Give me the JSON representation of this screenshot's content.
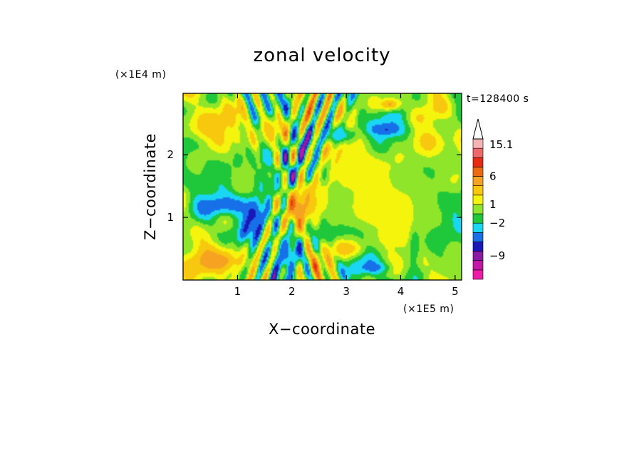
{
  "chart_data": {
    "type": "heatmap",
    "title": "zonal velocity",
    "xlabel": "X−coordinate",
    "ylabel": "Z−coordinate",
    "x_unit": "(×1E5 m)",
    "y_unit": "(×1E4 m)",
    "time_label": "t=128400 s",
    "xlim": [
      0,
      5.12
    ],
    "ylim": [
      0,
      2.98
    ],
    "x_ticks": [
      {
        "value": 1,
        "label": "1"
      },
      {
        "value": 2,
        "label": "2"
      },
      {
        "value": 3,
        "label": "3"
      },
      {
        "value": 4,
        "label": "4"
      },
      {
        "value": 5,
        "label": "5"
      }
    ],
    "y_ticks": [
      {
        "value": 1,
        "label": "1"
      },
      {
        "value": 2,
        "label": "2"
      }
    ],
    "colorbar": {
      "colors": [
        "#ee1aa8",
        "#c318a6",
        "#8b1ba3",
        "#1a18b8",
        "#1870e8",
        "#19d6f3",
        "#1ec83a",
        "#8ee52a",
        "#f4f40d",
        "#f8c80f",
        "#f5a320",
        "#ee6a12",
        "#e82a12",
        "#f0686a",
        "#f7b4b4"
      ],
      "labels": [
        {
          "level_index": 2.5,
          "label": "−9"
        },
        {
          "level_index": 6,
          "label": "−2"
        },
        {
          "level_index": 8,
          "label": "1"
        },
        {
          "level_index": 11,
          "label": "6"
        },
        {
          "level_index": 14.4,
          "label": "15.1"
        }
      ],
      "extend_max": true
    },
    "field_features": [
      {
        "x": 2.15,
        "z": 1.15,
        "level": 13,
        "rx": 0.22,
        "rz": 0.3
      },
      {
        "x": 2.4,
        "z": 1.25,
        "level": 11,
        "rx": 0.3,
        "rz": 0.3
      },
      {
        "x": 0.8,
        "z": 1.2,
        "level": 4,
        "rx": 0.55,
        "rz": 0.15
      },
      {
        "x": 1.3,
        "z": 1.05,
        "level": 3,
        "rx": 0.25,
        "rz": 0.28
      },
      {
        "x": 3.75,
        "z": 2.4,
        "level": 3,
        "rx": 0.35,
        "rz": 0.12
      },
      {
        "x": 2.9,
        "z": 2.3,
        "level": 4,
        "rx": 0.35,
        "rz": 0.15
      },
      {
        "x": 1.5,
        "z": 2.0,
        "level": 4,
        "rx": 0.15,
        "rz": 0.35
      },
      {
        "x": 1.9,
        "z": 0.45,
        "level": 4,
        "rx": 0.25,
        "rz": 0.4
      },
      {
        "x": 3.5,
        "z": 0.2,
        "level": 4,
        "rx": 0.3,
        "rz": 0.1
      },
      {
        "x": 4.25,
        "z": 0.7,
        "level": 4,
        "rx": 0.12,
        "rz": 0.4
      },
      {
        "x": 0.7,
        "z": 0.3,
        "level": 11,
        "rx": 0.55,
        "rz": 0.25
      },
      {
        "x": 3.3,
        "z": 1.2,
        "level": 8,
        "rx": 1.1,
        "rz": 0.6
      },
      {
        "x": 4.2,
        "z": 1.5,
        "level": 8,
        "rx": 0.5,
        "rz": 0.7
      },
      {
        "x": 0.45,
        "z": 2.45,
        "level": 10,
        "rx": 0.5,
        "rz": 0.3
      },
      {
        "x": 1.6,
        "z": 2.4,
        "level": 10,
        "rx": 0.3,
        "rz": 0.3
      },
      {
        "x": 3.1,
        "z": 1.85,
        "level": 9,
        "rx": 0.5,
        "rz": 0.35
      },
      {
        "x": 3.9,
        "z": 1.0,
        "level": 9,
        "rx": 0.4,
        "rz": 0.35
      },
      {
        "x": 4.7,
        "z": 1.9,
        "level": 7,
        "rx": 0.45,
        "rz": 0.5
      },
      {
        "x": 4.8,
        "z": 0.6,
        "level": 7,
        "rx": 0.35,
        "rz": 0.5
      },
      {
        "x": 0.6,
        "z": 1.8,
        "level": 7,
        "rx": 0.6,
        "rz": 0.3
      },
      {
        "x": 3.8,
        "z": 2.8,
        "level": 11,
        "rx": 0.25,
        "rz": 0.12
      },
      {
        "x": 1.5,
        "z": 1.55,
        "level": 6,
        "rx": 0.4,
        "rz": 0.25
      },
      {
        "x": 2.7,
        "z": 0.75,
        "level": 6,
        "rx": 0.4,
        "rz": 0.15
      },
      {
        "x": 3.0,
        "z": 0.5,
        "level": 10,
        "rx": 0.35,
        "rz": 0.15
      },
      {
        "x": 4.5,
        "z": 2.2,
        "level": 10,
        "rx": 0.3,
        "rz": 0.25
      }
    ]
  }
}
